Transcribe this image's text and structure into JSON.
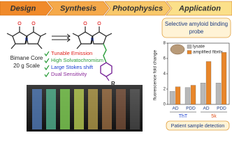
{
  "header": {
    "steps": [
      "Design",
      "Synthesis",
      "Photophysics",
      "Application"
    ]
  },
  "left": {
    "core_label": "Bimane Core",
    "scale_label": "20 g Scale",
    "substituent": "R"
  },
  "features": [
    "Tunable Emission",
    "High Solvatochromism",
    "Large Stokes shift",
    "Dual Sensitivity"
  ],
  "chart_data": {
    "type": "bar",
    "title": "Selective amyloid binding probe",
    "ylabel": "fluorescence fold change",
    "categories": [
      "AD",
      "PDD",
      "AD",
      "PDD"
    ],
    "group_labels": [
      "ThT",
      "5k"
    ],
    "series": [
      {
        "name": "lysate",
        "color": "#b8b8b8",
        "values": [
          1.7,
          2.2,
          2.8,
          2.8
        ]
      },
      {
        "name": "amplified fibrils",
        "color": "#e8862a",
        "values": [
          2.3,
          2.5,
          5.6,
          6.8
        ]
      }
    ],
    "ylim": [
      0,
      8
    ],
    "yticks": [
      0,
      2,
      4,
      6,
      8
    ]
  },
  "footer_label": "Patient sample detection"
}
